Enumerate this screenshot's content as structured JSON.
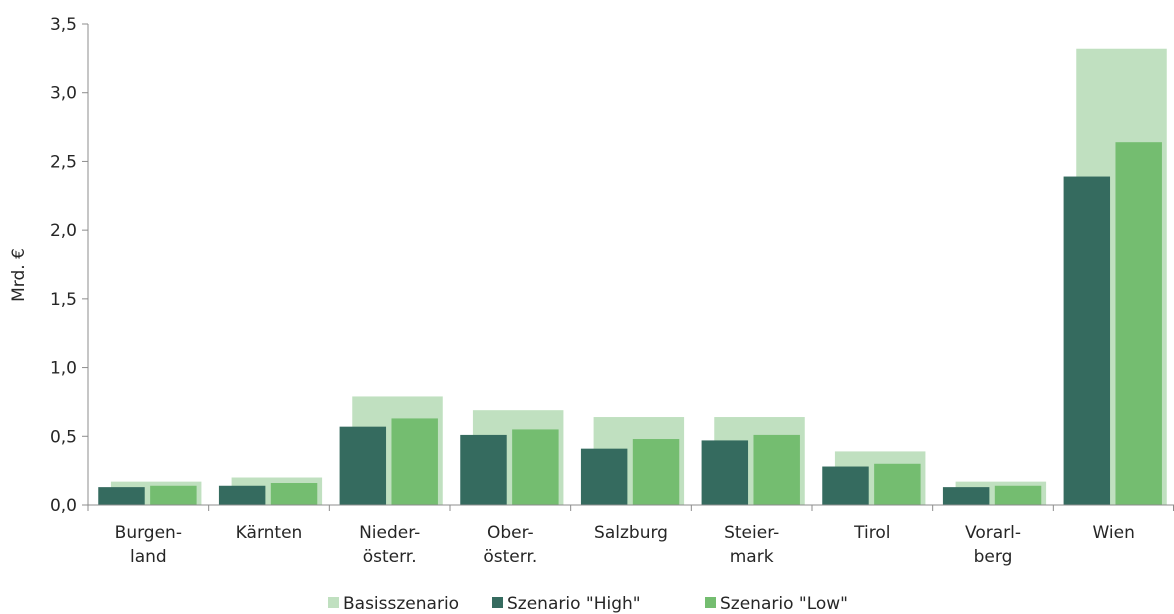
{
  "chart_data": {
    "type": "bar",
    "ylabel": "Mrd. €",
    "ylim": [
      0,
      3.5
    ],
    "yticks": [
      "0,0",
      "0,5",
      "1,0",
      "1,5",
      "2,0",
      "2,5",
      "3,0",
      "3,5"
    ],
    "categories": [
      [
        "Burgen-",
        "land"
      ],
      [
        "Kärnten"
      ],
      [
        "Nieder-",
        "österr."
      ],
      [
        "Ober-",
        "österr."
      ],
      [
        "Salzburg"
      ],
      [
        "Steier-",
        "mark"
      ],
      [
        "Tirol"
      ],
      [
        "Vorarl-",
        "berg"
      ],
      [
        "Wien"
      ]
    ],
    "series": [
      {
        "name": "Basisszenario",
        "color": "#c0e0c0",
        "values": [
          0.17,
          0.2,
          0.79,
          0.69,
          0.64,
          0.64,
          0.39,
          0.17,
          3.32
        ]
      },
      {
        "name": "Szenario \"High\"",
        "color": "#356b5f",
        "values": [
          0.13,
          0.14,
          0.57,
          0.51,
          0.41,
          0.47,
          0.28,
          0.13,
          2.39
        ]
      },
      {
        "name": "Szenario \"Low\"",
        "color": "#74bd70",
        "values": [
          0.14,
          0.16,
          0.63,
          0.55,
          0.48,
          0.51,
          0.3,
          0.14,
          2.64
        ]
      }
    ],
    "legend": "bottom",
    "grid": false
  }
}
